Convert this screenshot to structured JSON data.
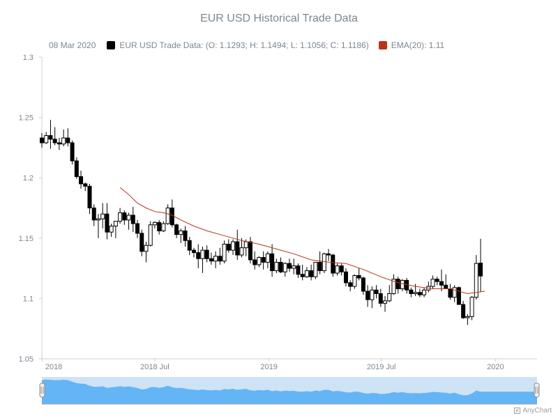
{
  "chart_data": {
    "type": "candlestick",
    "title": "EUR USD Historical Trade Data",
    "legend": {
      "date": "08 Mar 2020",
      "series_label": "EUR USD Trade Data: (O: 1.1293; H: 1.1494; L: 1.1056; C: 1.1186)",
      "ema_label": "EMA(20): 1.11"
    },
    "colors": {
      "rising": "#ffffff",
      "falling": "#000000",
      "wick": "#000000",
      "ema": "#b83517",
      "scroller": "#64b5f6",
      "scroller_bg": "#cfe3f7",
      "axis_text": "#7c868e"
    },
    "y_axis": {
      "min": 1.05,
      "max": 1.3,
      "ticks": [
        1.05,
        1.1,
        1.15,
        1.2,
        1.25,
        1.3
      ]
    },
    "x_axis": {
      "range": [
        "2017-12-31",
        "2020-03-08"
      ],
      "labels": [
        {
          "date": "2018-01-01",
          "text": "2018"
        },
        {
          "date": "2018-07-01",
          "text": "2018 Jul"
        },
        {
          "date": "2019-01-01",
          "text": "2019"
        },
        {
          "date": "2019-07-01",
          "text": "2019 Jul"
        },
        {
          "date": "2020-01-01",
          "text": "2020"
        }
      ]
    },
    "start_date": "2017-12-31",
    "period_days": 7,
    "series": [
      {
        "name": "EUR USD Trade Data",
        "ohlc": [
          [
            1.233,
            1.237,
            1.225,
            1.229
          ],
          [
            1.229,
            1.238,
            1.228,
            1.235
          ],
          [
            1.235,
            1.248,
            1.224,
            1.232
          ],
          [
            1.232,
            1.242,
            1.227,
            1.229
          ],
          [
            1.229,
            1.233,
            1.223,
            1.228
          ],
          [
            1.228,
            1.24,
            1.226,
            1.233
          ],
          [
            1.233,
            1.241,
            1.226,
            1.229
          ],
          [
            1.229,
            1.231,
            1.211,
            1.214
          ],
          [
            1.214,
            1.217,
            1.199,
            1.201
          ],
          [
            1.201,
            1.206,
            1.191,
            1.195
          ],
          [
            1.195,
            1.196,
            1.189,
            1.193
          ],
          [
            1.193,
            1.195,
            1.17,
            1.175
          ],
          [
            1.175,
            1.178,
            1.16,
            1.165
          ],
          [
            1.165,
            1.17,
            1.15,
            1.166
          ],
          [
            1.166,
            1.179,
            1.158,
            1.17
          ],
          [
            1.17,
            1.179,
            1.149,
            1.155
          ],
          [
            1.155,
            1.162,
            1.151,
            1.16
          ],
          [
            1.16,
            1.162,
            1.15,
            1.164
          ],
          [
            1.164,
            1.175,
            1.162,
            1.171
          ],
          [
            1.171,
            1.173,
            1.161,
            1.165
          ],
          [
            1.165,
            1.171,
            1.157,
            1.169
          ],
          [
            1.169,
            1.176,
            1.155,
            1.162
          ],
          [
            1.162,
            1.165,
            1.15,
            1.154
          ],
          [
            1.154,
            1.157,
            1.135,
            1.139
          ],
          [
            1.139,
            1.147,
            1.13,
            1.144
          ],
          [
            1.144,
            1.164,
            1.143,
            1.161
          ],
          [
            1.161,
            1.164,
            1.158,
            1.163
          ],
          [
            1.163,
            1.165,
            1.153,
            1.156
          ],
          [
            1.156,
            1.164,
            1.155,
            1.162
          ],
          [
            1.162,
            1.178,
            1.161,
            1.175
          ],
          [
            1.175,
            1.182,
            1.159,
            1.161
          ],
          [
            1.161,
            1.162,
            1.15,
            1.153
          ],
          [
            1.153,
            1.158,
            1.146,
            1.156
          ],
          [
            1.156,
            1.16,
            1.143,
            1.148
          ],
          [
            1.148,
            1.151,
            1.136,
            1.14
          ],
          [
            1.14,
            1.142,
            1.134,
            1.138
          ],
          [
            1.138,
            1.145,
            1.125,
            1.133
          ],
          [
            1.133,
            1.143,
            1.121,
            1.14
          ],
          [
            1.14,
            1.144,
            1.13,
            1.133
          ],
          [
            1.133,
            1.138,
            1.128,
            1.131
          ],
          [
            1.131,
            1.139,
            1.125,
            1.135
          ],
          [
            1.135,
            1.142,
            1.128,
            1.131
          ],
          [
            1.131,
            1.148,
            1.129,
            1.145
          ],
          [
            1.145,
            1.149,
            1.138,
            1.14
          ],
          [
            1.14,
            1.149,
            1.136,
            1.147
          ],
          [
            1.147,
            1.157,
            1.132,
            1.136
          ],
          [
            1.136,
            1.15,
            1.134,
            1.142
          ],
          [
            1.142,
            1.149,
            1.135,
            1.147
          ],
          [
            1.147,
            1.151,
            1.129,
            1.132
          ],
          [
            1.132,
            1.139,
            1.124,
            1.128
          ],
          [
            1.128,
            1.135,
            1.126,
            1.134
          ],
          [
            1.134,
            1.139,
            1.124,
            1.13
          ],
          [
            1.13,
            1.139,
            1.125,
            1.137
          ],
          [
            1.137,
            1.145,
            1.118,
            1.123
          ],
          [
            1.123,
            1.133,
            1.121,
            1.13
          ],
          [
            1.13,
            1.134,
            1.121,
            1.122
          ],
          [
            1.122,
            1.13,
            1.118,
            1.129
          ],
          [
            1.129,
            1.133,
            1.122,
            1.125
          ],
          [
            1.125,
            1.133,
            1.12,
            1.127
          ],
          [
            1.127,
            1.129,
            1.117,
            1.12
          ],
          [
            1.12,
            1.128,
            1.115,
            1.118
          ],
          [
            1.118,
            1.126,
            1.117,
            1.123
          ],
          [
            1.123,
            1.128,
            1.115,
            1.118
          ],
          [
            1.118,
            1.13,
            1.116,
            1.13
          ],
          [
            1.13,
            1.139,
            1.12,
            1.123
          ],
          [
            1.123,
            1.138,
            1.121,
            1.137
          ],
          [
            1.137,
            1.141,
            1.131,
            1.136
          ],
          [
            1.136,
            1.137,
            1.118,
            1.121
          ],
          [
            1.121,
            1.129,
            1.119,
            1.127
          ],
          [
            1.127,
            1.129,
            1.119,
            1.122
          ],
          [
            1.122,
            1.125,
            1.11,
            1.113
          ],
          [
            1.113,
            1.115,
            1.106,
            1.11
          ],
          [
            1.11,
            1.12,
            1.108,
            1.119
          ],
          [
            1.119,
            1.125,
            1.115,
            1.117
          ],
          [
            1.117,
            1.118,
            1.103,
            1.106
          ],
          [
            1.106,
            1.111,
            1.093,
            1.099
          ],
          [
            1.099,
            1.11,
            1.092,
            1.107
          ],
          [
            1.107,
            1.111,
            1.1,
            1.104
          ],
          [
            1.104,
            1.108,
            1.093,
            1.096
          ],
          [
            1.096,
            1.102,
            1.089,
            1.098
          ],
          [
            1.098,
            1.111,
            1.097,
            1.104
          ],
          [
            1.104,
            1.12,
            1.103,
            1.116
          ],
          [
            1.116,
            1.118,
            1.104,
            1.108
          ],
          [
            1.108,
            1.116,
            1.106,
            1.115
          ],
          [
            1.115,
            1.117,
            1.104,
            1.107
          ],
          [
            1.107,
            1.109,
            1.101,
            1.104
          ],
          [
            1.104,
            1.112,
            1.102,
            1.105
          ],
          [
            1.105,
            1.108,
            1.101,
            1.103
          ],
          [
            1.103,
            1.109,
            1.101,
            1.107
          ],
          [
            1.107,
            1.114,
            1.105,
            1.11
          ],
          [
            1.11,
            1.119,
            1.108,
            1.116
          ],
          [
            1.116,
            1.118,
            1.111,
            1.114
          ],
          [
            1.114,
            1.124,
            1.106,
            1.111
          ],
          [
            1.111,
            1.12,
            1.109,
            1.108
          ],
          [
            1.108,
            1.112,
            1.099,
            1.101
          ],
          [
            1.101,
            1.111,
            1.097,
            1.109
          ],
          [
            1.109,
            1.11,
            1.096,
            1.095
          ],
          [
            1.095,
            1.098,
            1.083,
            1.084
          ],
          [
            1.084,
            1.087,
            1.078,
            1.085
          ],
          [
            1.085,
            1.102,
            1.082,
            1.101
          ],
          [
            1.101,
            1.136,
            1.099,
            1.129
          ],
          [
            1.1293,
            1.1494,
            1.1056,
            1.1186
          ]
        ]
      },
      {
        "name": "EMA(20)",
        "values": [
          [
            18,
            1.192
          ],
          [
            20,
            1.186
          ],
          [
            22,
            1.179
          ],
          [
            24,
            1.175
          ],
          [
            26,
            1.172
          ],
          [
            28,
            1.171
          ],
          [
            30,
            1.169
          ],
          [
            32,
            1.165
          ],
          [
            35,
            1.16
          ],
          [
            38,
            1.156
          ],
          [
            42,
            1.152
          ],
          [
            46,
            1.148
          ],
          [
            50,
            1.145
          ],
          [
            54,
            1.141
          ],
          [
            58,
            1.137
          ],
          [
            62,
            1.132
          ],
          [
            66,
            1.13
          ],
          [
            70,
            1.129
          ],
          [
            74,
            1.124
          ],
          [
            78,
            1.118
          ],
          [
            82,
            1.113
          ],
          [
            86,
            1.11
          ],
          [
            90,
            1.108
          ],
          [
            94,
            1.108
          ],
          [
            98,
            1.104
          ],
          [
            100,
            1.105
          ],
          [
            102,
            1.106
          ]
        ]
      }
    ]
  },
  "credits": {
    "text": "AnyChart"
  }
}
